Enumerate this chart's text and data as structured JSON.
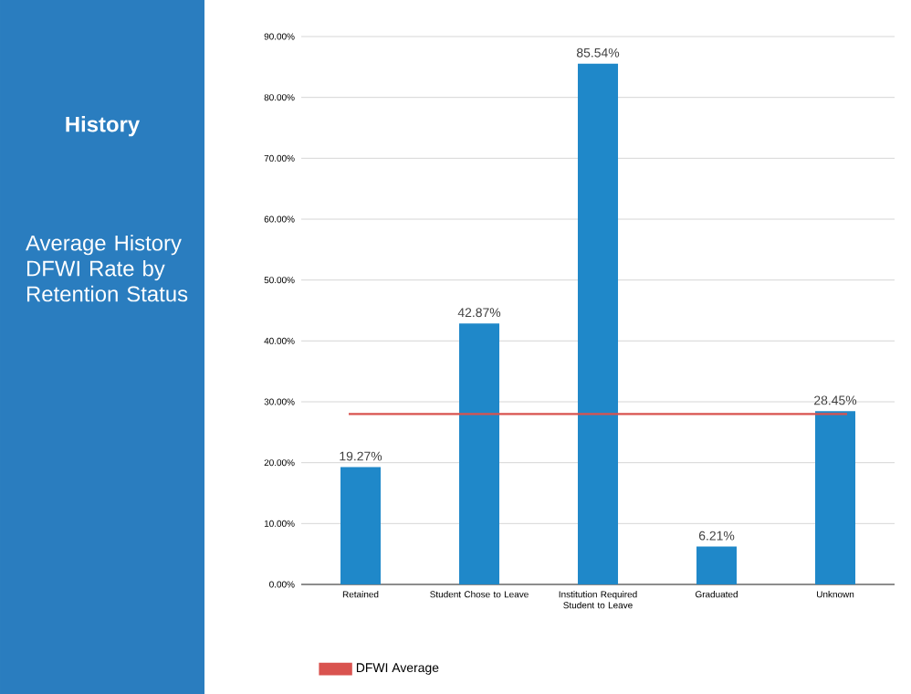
{
  "chart_data": {
    "type": "bar",
    "title": "History",
    "subtitle": "Average History DFWI Rate by Retention Status",
    "categories": [
      "Retained",
      "Student Chose to Leave",
      "Institution Required Student to Leave",
      "Graduated",
      "Unknown"
    ],
    "values": [
      19.27,
      42.87,
      85.54,
      6.21,
      28.45
    ],
    "value_labels": [
      "19.27%",
      "42.87%",
      "85.54%",
      "6.21%",
      "28.45%"
    ],
    "color": "#1f88c9",
    "ylim": [
      0,
      90
    ],
    "yticks": [
      {
        "value": 0,
        "label": "0.00%"
      },
      {
        "value": 10,
        "label": "10.00%"
      },
      {
        "value": 20,
        "label": "20.00%"
      },
      {
        "value": 30,
        "label": "30.00%"
      },
      {
        "value": 40,
        "label": "40.00%"
      },
      {
        "value": 50,
        "label": "50.00%"
      },
      {
        "value": 60,
        "label": "60.00%"
      },
      {
        "value": 70,
        "label": "70.00%"
      },
      {
        "value": 80,
        "label": "80.00%"
      },
      {
        "value": 90,
        "label": "90.00%"
      }
    ],
    "grid": "y",
    "legend": "bottom",
    "ref_lines": [
      {
        "axis": "y",
        "value": 28,
        "label": "DFWI Average",
        "color": "#d9534f"
      }
    ]
  }
}
